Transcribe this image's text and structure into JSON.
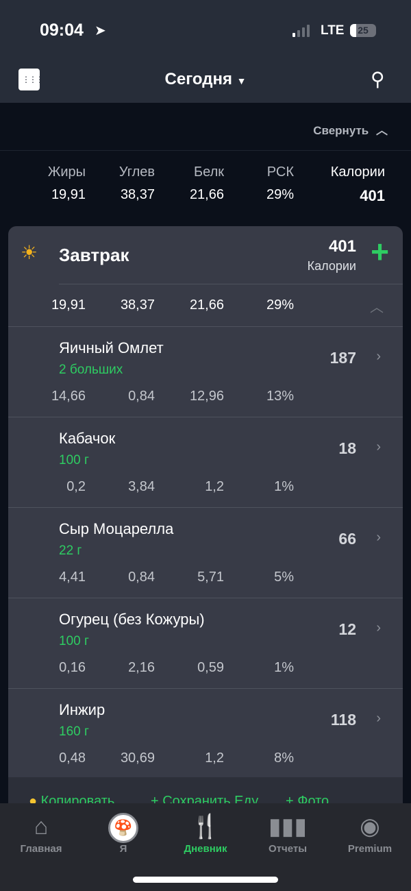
{
  "status": {
    "time": "09:04",
    "network": "LTE",
    "battery": "25"
  },
  "header": {
    "title": "Сегодня",
    "calendar_icon": "calendar-icon",
    "search_icon": "search-icon"
  },
  "collapse_label": "Свернуть",
  "summary": {
    "headers": [
      "Жиры",
      "Углев",
      "Белк",
      "РСК",
      "Калории"
    ],
    "values": [
      "19,91",
      "38,37",
      "21,66",
      "29%",
      "401"
    ]
  },
  "meal": {
    "name": "Завтрак",
    "calories": "401",
    "calories_label": "Калории",
    "totals": [
      "19,91",
      "38,37",
      "21,66",
      "29%"
    ],
    "items": [
      {
        "name": "Яичный Омлет",
        "serving": "2 больших",
        "calories": "187",
        "macros": [
          "14,66",
          "0,84",
          "12,96",
          "13%"
        ]
      },
      {
        "name": "Кабачок",
        "serving": "100 г",
        "calories": "18",
        "macros": [
          "0,2",
          "3,84",
          "1,2",
          "1%"
        ]
      },
      {
        "name": "Сыр Моцарелла",
        "serving": "22 г",
        "calories": "66",
        "macros": [
          "4,41",
          "0,84",
          "5,71",
          "5%"
        ]
      },
      {
        "name": "Огурец (без Кожуры)",
        "serving": "100 г",
        "calories": "12",
        "macros": [
          "0,16",
          "2,16",
          "0,59",
          "1%"
        ]
      },
      {
        "name": "Инжир",
        "serving": "160 г",
        "calories": "118",
        "macros": [
          "0,48",
          "30,69",
          "1,2",
          "8%"
        ]
      }
    ]
  },
  "actions": {
    "copy": "Копировать",
    "save": "+ Сохранить Еду",
    "photo": "+ Фото"
  },
  "tabs": [
    {
      "label": "Главная"
    },
    {
      "label": "Я"
    },
    {
      "label": "Дневник",
      "active": true
    },
    {
      "label": "Отчеты"
    },
    {
      "label": "Premium"
    }
  ],
  "colors": {
    "accent": "#2ecc62",
    "card": "#383b47",
    "header": "#272d39"
  }
}
